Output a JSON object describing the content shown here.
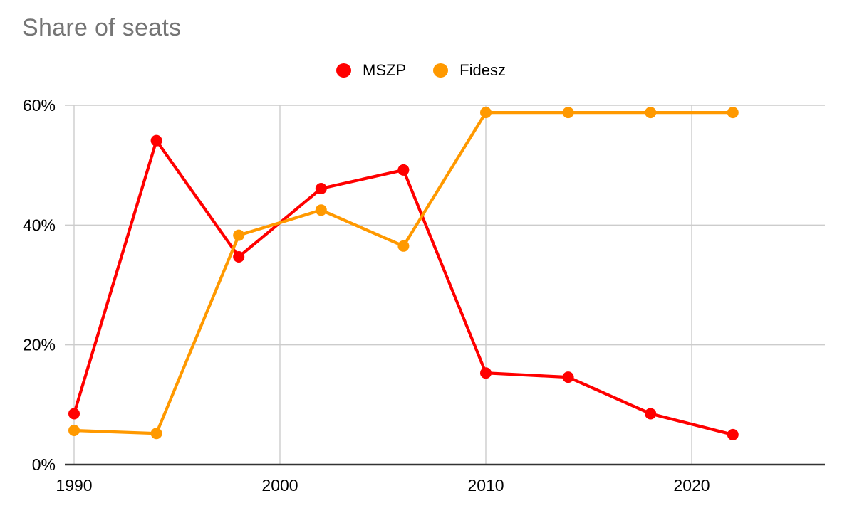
{
  "title": "Share of seats",
  "chart_data": {
    "type": "line",
    "title": "Share of seats",
    "x": [
      1990,
      1994,
      1998,
      2002,
      2006,
      2010,
      2014,
      2018,
      2022
    ],
    "series": [
      {
        "name": "MSZP",
        "color": "#ff0000",
        "values": [
          8.5,
          54.1,
          34.7,
          46.1,
          49.2,
          15.3,
          14.6,
          8.5,
          5.0
        ]
      },
      {
        "name": "Fidesz",
        "color": "#ff9900",
        "values": [
          5.7,
          5.2,
          38.3,
          42.5,
          36.5,
          58.8,
          58.8,
          58.8,
          58.8
        ]
      }
    ],
    "x_ticks": [
      1990,
      2000,
      2010,
      2020
    ],
    "x_tick_labels": [
      "1990",
      "2000",
      "2010",
      "2020"
    ],
    "y_ticks": [
      0,
      20,
      40,
      60
    ],
    "y_tick_labels": [
      "0%",
      "20%",
      "40%",
      "60%"
    ],
    "ylim": [
      0,
      60
    ],
    "xlim": [
      1990,
      2026.5
    ],
    "grid": true,
    "legend_position": "top",
    "style": {
      "title_color": "#757575",
      "grid_color": "#cccccc",
      "axis_color": "#333333",
      "tick_label_color": "#000000",
      "legend_text_color": "#000000"
    }
  }
}
